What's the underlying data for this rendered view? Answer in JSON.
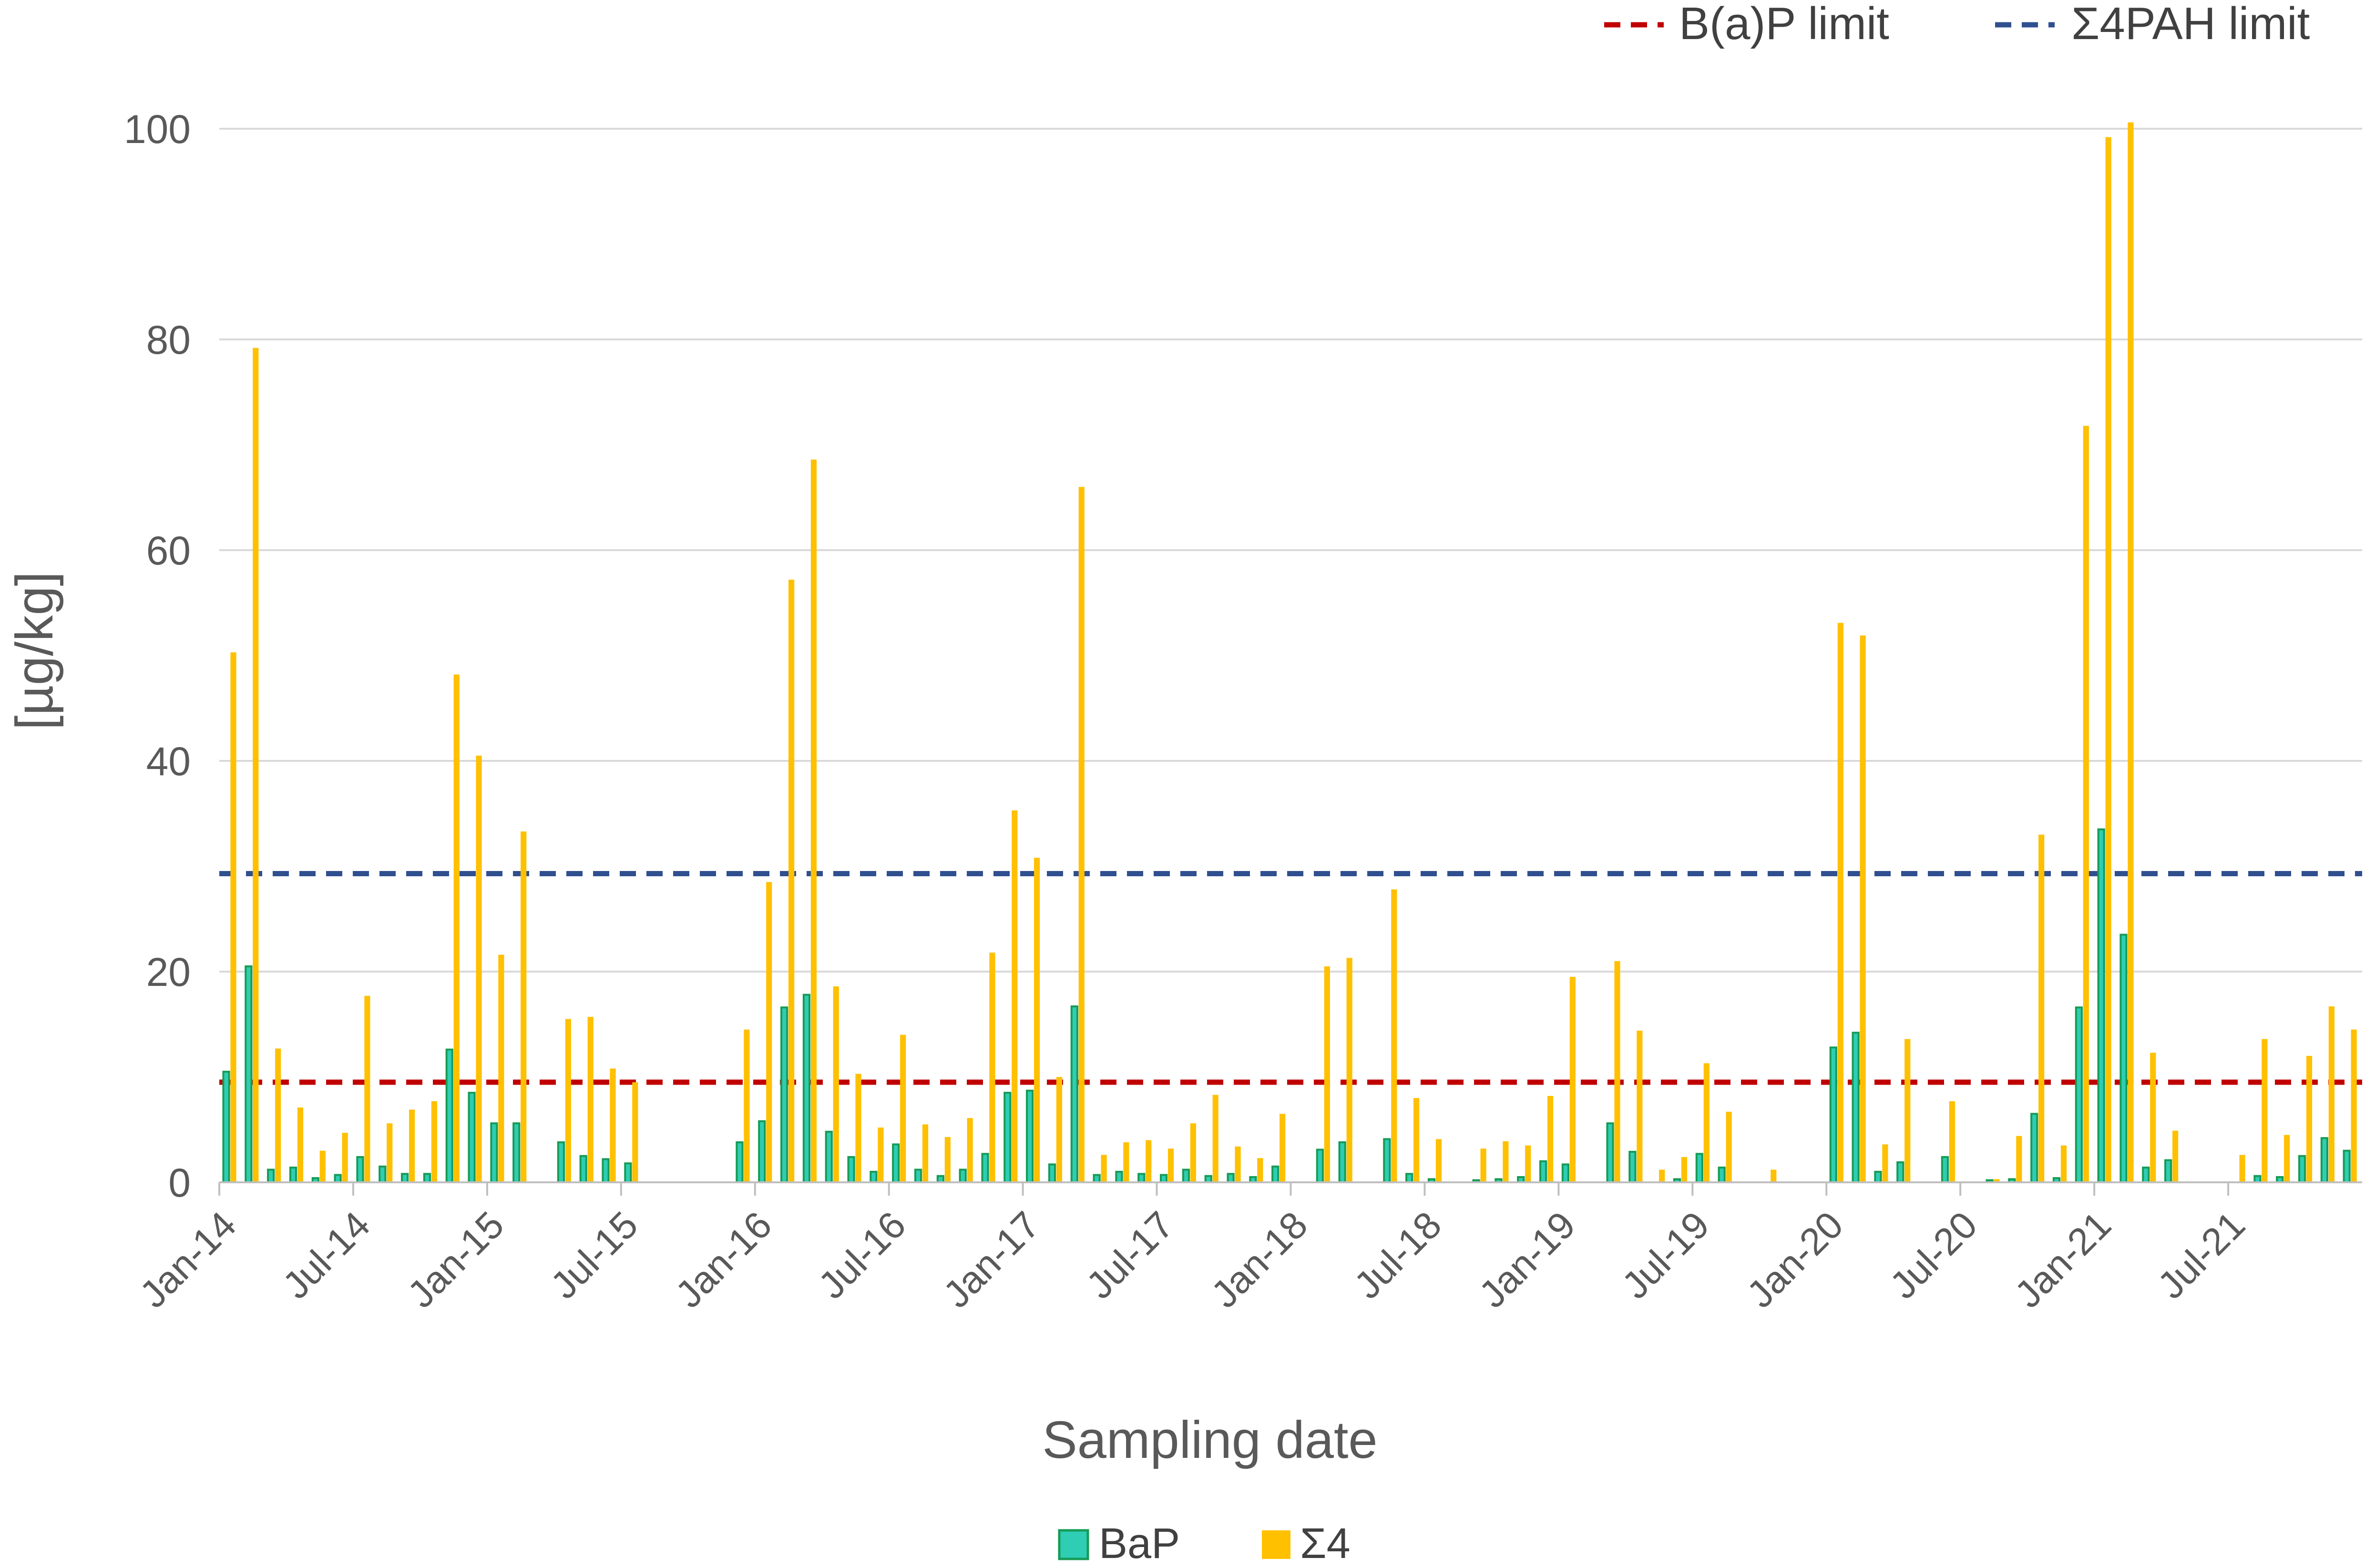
{
  "chart_data": {
    "type": "bar",
    "xlabel": "Sampling date",
    "ylabel": "[µg/kg]",
    "ylim": [
      0,
      100
    ],
    "yticks": [
      0,
      20,
      40,
      60,
      80,
      100
    ],
    "xticks": [
      "Jan-14",
      "Jul-14",
      "Jan-15",
      "Jul-15",
      "Jan-16",
      "Jul-16",
      "Jan-17",
      "Jul-17",
      "Jan-18",
      "Jul-18",
      "Jan-19",
      "Jul-19",
      "Jan-20",
      "Jul-20",
      "Jan-21",
      "Jul-21"
    ],
    "grid": "horizontal",
    "legend_position": "bottom",
    "colors": {
      "BaP": "#2ecdb4",
      "BaP_border": "#169b55",
      "sum4": "#ffc000",
      "bap_limit": "#c00000",
      "pah_limit": "#2f4f8f"
    },
    "series": [
      {
        "name": "BaP",
        "values": [
          10.5,
          20.5,
          1.2,
          1.4,
          0.4,
          0.7,
          2.4,
          1.5,
          0.8,
          0.8,
          12.6,
          8.5,
          5.6,
          5.6,
          0,
          3.8,
          2.5,
          2.2,
          1.8,
          0,
          0,
          0,
          0,
          3.8,
          5.8,
          16.6,
          17.8,
          4.8,
          2.4,
          1.0,
          3.6,
          1.2,
          0.6,
          1.2,
          2.7,
          8.5,
          8.7,
          1.7,
          16.7,
          0.7,
          1.0,
          0.8,
          0.7,
          1.2,
          0.6,
          0.8,
          0.5,
          1.5,
          0,
          3.1,
          3.8,
          0,
          4.1,
          0.8,
          0.3,
          0,
          0.2,
          0.3,
          0.5,
          2.0,
          1.7,
          0,
          5.6,
          2.9,
          0,
          0.3,
          2.7,
          1.4,
          0,
          0,
          0,
          0,
          12.8,
          14.2,
          1.0,
          1.9,
          0,
          2.4,
          0,
          0.2,
          0.3,
          6.5,
          0.4,
          16.6,
          33.5,
          23.5,
          1.4,
          2.1,
          0,
          0,
          0,
          0.6,
          0.5,
          2.5,
          4.2,
          3.0
        ]
      },
      {
        "name": "Σ4",
        "values": [
          50.3,
          79.2,
          12.7,
          7.1,
          3.0,
          4.7,
          17.7,
          5.6,
          6.9,
          7.7,
          48.2,
          40.5,
          21.6,
          33.3,
          0,
          15.5,
          15.7,
          10.8,
          9.5,
          0,
          0,
          0,
          0,
          14.5,
          28.5,
          57.2,
          68.6,
          18.6,
          10.3,
          5.2,
          14.0,
          5.5,
          4.3,
          6.1,
          21.8,
          35.3,
          30.8,
          10.0,
          66.0,
          2.6,
          3.8,
          4.0,
          3.2,
          5.6,
          8.3,
          3.4,
          2.3,
          6.5,
          0,
          20.5,
          21.3,
          0,
          27.8,
          8.0,
          4.1,
          0,
          3.2,
          3.9,
          3.5,
          8.2,
          19.5,
          0,
          21.0,
          14.4,
          1.2,
          2.4,
          11.3,
          6.7,
          0,
          1.2,
          0,
          0,
          53.1,
          51.9,
          3.6,
          13.6,
          0,
          7.7,
          0,
          0.3,
          4.4,
          33.0,
          3.5,
          71.8,
          99.2,
          100.6,
          12.3,
          4.9,
          0,
          0,
          2.6,
          13.6,
          4.5,
          12.0,
          16.7,
          14.5
        ]
      }
    ],
    "reference_lines": [
      {
        "name": "B(a)P limit",
        "value": 9.5
      },
      {
        "name": "Σ4PAH limit",
        "value": 29.3
      }
    ]
  }
}
